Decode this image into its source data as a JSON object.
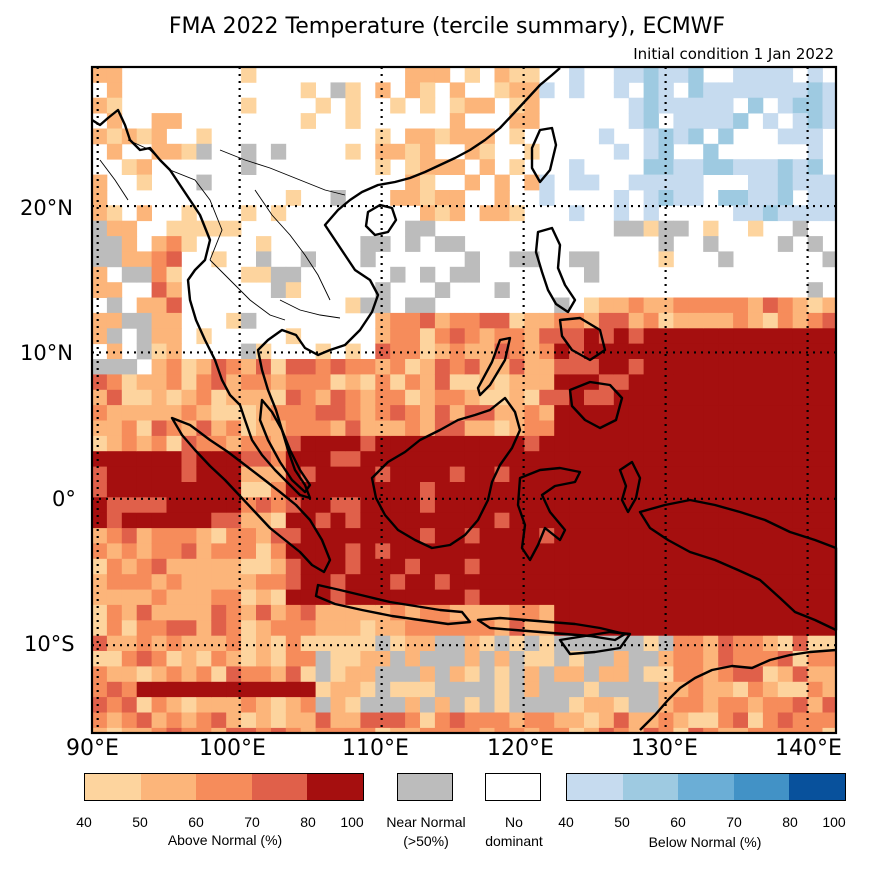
{
  "title": "FMA 2022 Temperature (tercile summary), ECMWF",
  "subtitle": "Initial condition 1 Jan 2022",
  "lat_labels": [
    "20°N",
    "10°N",
    "0°",
    "10°S"
  ],
  "lon_labels": [
    "90°E",
    "100°E",
    "110°E",
    "120°E",
    "130°E",
    "140°E"
  ],
  "legend": {
    "above": {
      "caption": "Above Normal (%)",
      "ticks": [
        "40",
        "50",
        "60",
        "70",
        "80",
        "100"
      ],
      "colors": [
        "#fdd49e",
        "#fcb57a",
        "#f68c5b",
        "#e0604a",
        "#a50f0f"
      ]
    },
    "near": {
      "caption_line1": "Near Normal",
      "caption_line2": "(>50%)",
      "color": "#bcbcbc"
    },
    "none": {
      "caption_line1": "No",
      "caption_line2": "dominant",
      "color": "#ffffff"
    },
    "below": {
      "caption": "Below Normal (%)",
      "ticks": [
        "40",
        "50",
        "60",
        "70",
        "80",
        "100"
      ],
      "colors": [
        "#c6dbef",
        "#9ecae1",
        "#6baed6",
        "#4292c6",
        "#08519c"
      ]
    }
  },
  "chart_data": {
    "type": "heatmap",
    "lon_range": [
      89.6,
      142
    ],
    "lat_range": [
      -16,
      29.5
    ],
    "grid_lines_lon": [
      90,
      100,
      110,
      120,
      130,
      140
    ],
    "grid_lines_lat": [
      20,
      10,
      0,
      -10
    ],
    "regions": [
      {
        "category": "near_normal",
        "area": "central Myanmar / Andaman Sea",
        "color": "#bcbcbc"
      },
      {
        "category": "near_normal",
        "area": "South China Sea north of Philippines",
        "color": "#bcbcbc"
      },
      {
        "category": "near_normal",
        "area": "southern Indian Ocean west of Java",
        "color": "#bcbcbc"
      },
      {
        "category": "near_normal",
        "area": "Timor Sea / north Australia",
        "color": "#bcbcbc"
      },
      {
        "category": "above_normal_80_100",
        "area": "Maritime Continent and western Pacific east of Philippines",
        "color": "#a50f0f"
      },
      {
        "category": "above_normal_80_100",
        "area": "equatorial Indian Ocean west of Sumatra",
        "color": "#a50f0f"
      },
      {
        "category": "below_normal_40_60",
        "area": "subtropical western Pacific north-east",
        "color": "#c6dbef"
      },
      {
        "category": "no_dominant",
        "area": "Indochina / southern China",
        "color": "#ffffff"
      }
    ]
  }
}
